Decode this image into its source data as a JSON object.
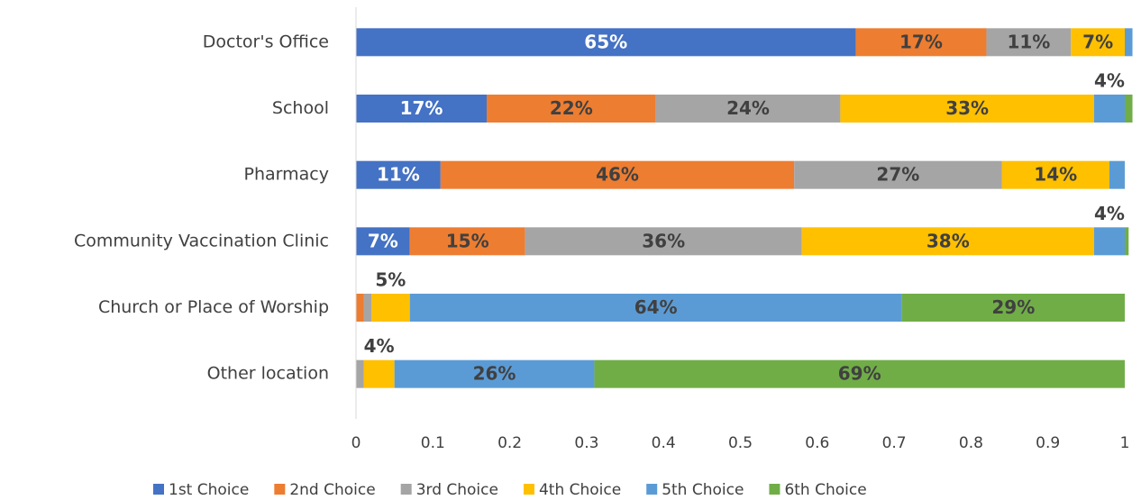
{
  "chart_data": {
    "type": "stacked-barh",
    "categories": [
      "Doctor's Office",
      "School",
      "Pharmacy",
      "Community Vaccination Clinic",
      "Church or Place of Worship",
      "Other location"
    ],
    "series": [
      {
        "name": "1st Choice",
        "color": "#4472c4",
        "label_color": "#ffffff",
        "values": [
          0.65,
          0.17,
          0.11,
          0.07,
          0,
          0
        ],
        "value_labels": [
          "65%",
          "17%",
          "11%",
          "7%",
          null,
          null
        ]
      },
      {
        "name": "2nd Choice",
        "color": "#ed7d31",
        "label_color": "#404040",
        "values": [
          0.17,
          0.22,
          0.46,
          0.15,
          0.01,
          0
        ],
        "value_labels": [
          "17%",
          "22%",
          "46%",
          "15%",
          null,
          null
        ]
      },
      {
        "name": "3rd Choice",
        "color": "#a5a5a5",
        "label_color": "#404040",
        "values": [
          0.11,
          0.24,
          0.27,
          0.36,
          0.01,
          0.01
        ],
        "value_labels": [
          "11%",
          "24%",
          "27%",
          "36%",
          null,
          null
        ]
      },
      {
        "name": "4th Choice",
        "color": "#ffc000",
        "label_color": "#404040",
        "values": [
          0.07,
          0.33,
          0.14,
          0.38,
          0.05,
          0.04
        ],
        "value_labels": [
          "7%",
          "33%",
          "14%",
          "38%",
          "5%",
          "4%"
        ]
      },
      {
        "name": "5th Choice",
        "color": "#5b9bd5",
        "label_color": "#404040",
        "values": [
          0.01,
          0.04,
          0.02,
          0.04,
          0.64,
          0.26
        ],
        "value_labels": [
          null,
          "4%",
          null,
          "4%",
          "64%",
          "26%"
        ]
      },
      {
        "name": "6th Choice",
        "color": "#70ad47",
        "label_color": "#404040",
        "values": [
          0,
          0.01,
          0,
          0.005,
          0.29,
          0.69
        ],
        "value_labels": [
          null,
          null,
          null,
          null,
          "29%",
          "69%"
        ]
      }
    ],
    "xlim": [
      0,
      1
    ],
    "xticks": [
      0,
      0.1,
      0.2,
      0.3,
      0.4,
      0.5,
      0.6,
      0.7,
      0.8,
      0.9,
      1
    ],
    "grid": false,
    "legend": "bottom"
  }
}
